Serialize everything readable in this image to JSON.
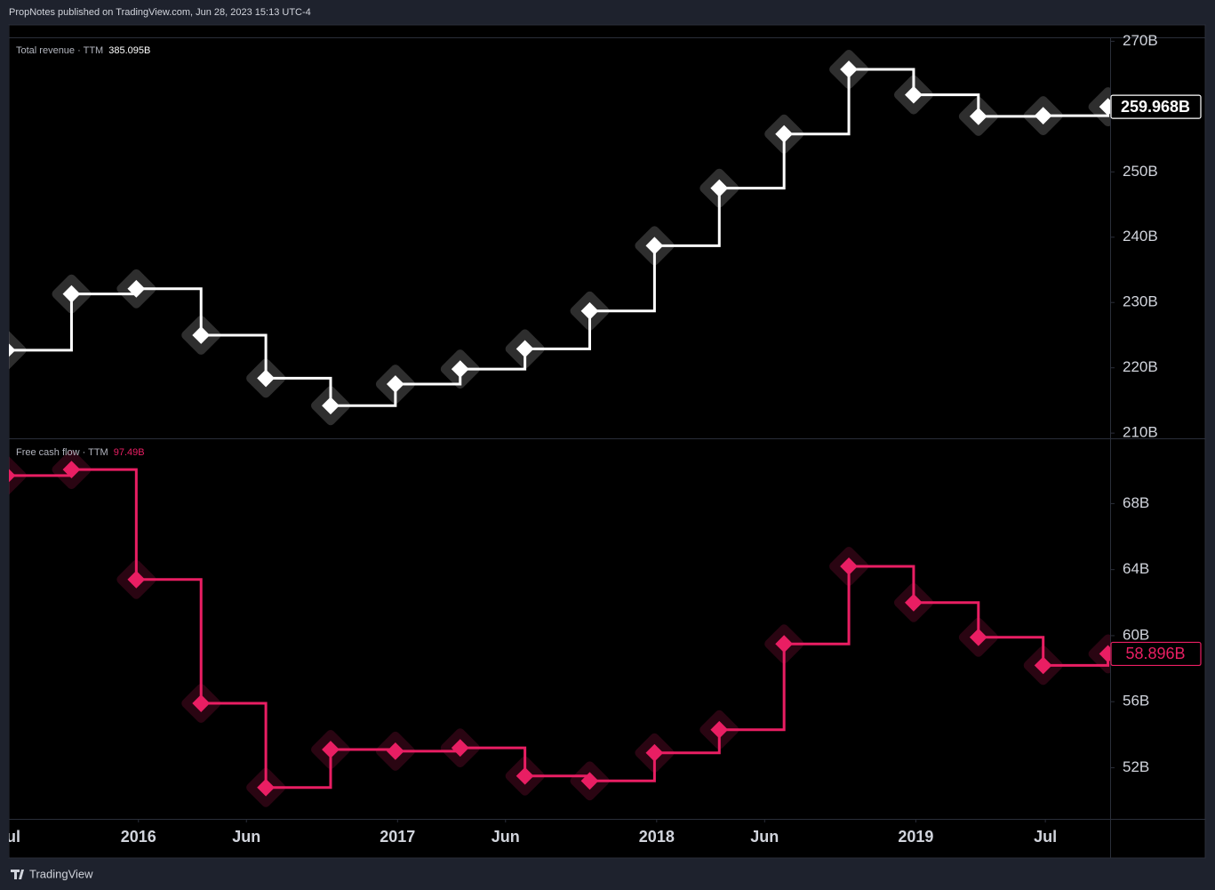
{
  "header": {
    "text": "PropNotes published on TradingView.com, Jun 28, 2023 15:13 UTC-4"
  },
  "footer": {
    "brand": "TradingView"
  },
  "chart_data": [
    {
      "type": "line",
      "step": true,
      "title": "Total revenue · TTM",
      "legend_value": "385.095B",
      "color": "#ffffff",
      "x": [
        "2015-06",
        "2015-09",
        "2015-12",
        "2016-03",
        "2016-06",
        "2016-09",
        "2016-12",
        "2017-03",
        "2017-06",
        "2017-09",
        "2017-12",
        "2018-03",
        "2018-06",
        "2018-09",
        "2018-12",
        "2019-03",
        "2019-06",
        "2019-09"
      ],
      "values": [
        222.7,
        231.3,
        232.1,
        225.0,
        218.4,
        214.2,
        217.5,
        219.8,
        222.9,
        228.7,
        238.7,
        247.5,
        255.8,
        265.7,
        261.8,
        258.5,
        258.6,
        259.968
      ],
      "value_labels": [
        null,
        null,
        null,
        null,
        null,
        null,
        null,
        null,
        null,
        null,
        null,
        null,
        null,
        null,
        null,
        null,
        null,
        "259.968B"
      ],
      "xlim": [
        "2015-07",
        "2019-10"
      ],
      "ylim": [
        209.2,
        270.6
      ],
      "yticks": [
        {
          "value": 210,
          "label": "210B"
        },
        {
          "value": 220,
          "label": "220B"
        },
        {
          "value": 230,
          "label": "230B"
        },
        {
          "value": 240,
          "label": "240B"
        },
        {
          "value": 250,
          "label": "250B"
        },
        {
          "value": 260,
          "label": "260B"
        },
        {
          "value": 270,
          "label": "270B"
        }
      ]
    },
    {
      "type": "line",
      "step": true,
      "title": "Free cash flow · TTM",
      "legend_value": "97.49B",
      "color": "#e91e63",
      "x": [
        "2015-06",
        "2015-09",
        "2015-12",
        "2016-03",
        "2016-06",
        "2016-09",
        "2016-12",
        "2017-03",
        "2017-06",
        "2017-09",
        "2017-12",
        "2018-03",
        "2018-06",
        "2018-09",
        "2018-12",
        "2019-03",
        "2019-06",
        "2019-09"
      ],
      "values": [
        69.7,
        70.06,
        63.4,
        55.9,
        50.8,
        53.1,
        53.0,
        53.2,
        51.5,
        51.2,
        52.9,
        54.3,
        59.5,
        64.2,
        62.0,
        59.9,
        58.2,
        58.896
      ],
      "value_labels": [
        null,
        null,
        null,
        null,
        null,
        null,
        null,
        null,
        null,
        null,
        null,
        null,
        null,
        null,
        null,
        null,
        null,
        "58.896B"
      ],
      "xlim": [
        "2015-07",
        "2019-10"
      ],
      "ylim": [
        48.9,
        71.9
      ],
      "yticks": [
        {
          "value": 52,
          "label": "52B"
        },
        {
          "value": 56,
          "label": "56B"
        },
        {
          "value": 60,
          "label": "60B"
        },
        {
          "value": 64,
          "label": "64B"
        },
        {
          "value": 68,
          "label": "68B"
        }
      ],
      "xticks": [
        {
          "value": "2015-07",
          "label": "Jul"
        },
        {
          "value": "2016-01",
          "label": "2016"
        },
        {
          "value": "2016-06",
          "label": "Jun"
        },
        {
          "value": "2017-01",
          "label": "2017"
        },
        {
          "value": "2017-06",
          "label": "Jun"
        },
        {
          "value": "2018-01",
          "label": "2018"
        },
        {
          "value": "2018-06",
          "label": "Jun"
        },
        {
          "value": "2019-01",
          "label": "2019"
        },
        {
          "value": "2019-07",
          "label": "Jul"
        }
      ]
    }
  ]
}
